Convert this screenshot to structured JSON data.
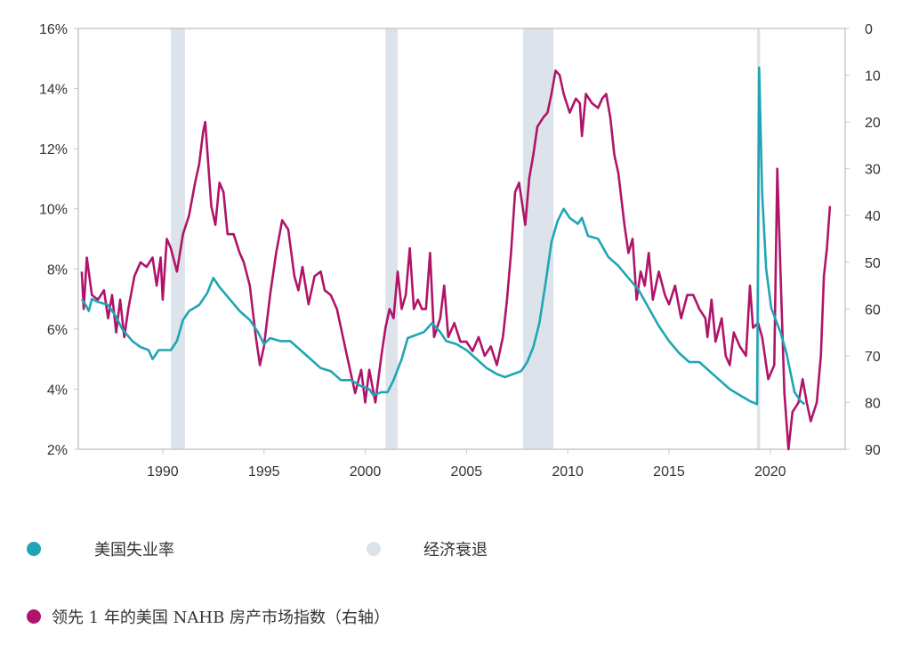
{
  "chart_data": {
    "type": "line",
    "title": "",
    "xlabel": "",
    "ylabel": "",
    "xlim": [
      1985.83,
      2023.7
    ],
    "x_ticks": [
      "1990",
      "1995",
      "2000",
      "2005",
      "2010",
      "2015",
      "2020"
    ],
    "left_axis": {
      "ylim": [
        2,
        16
      ],
      "ticks": [
        "2%",
        "4%",
        "6%",
        "8%",
        "10%",
        "12%",
        "14%",
        "16%"
      ]
    },
    "right_axis": {
      "ylim": [
        0,
        90
      ],
      "inverted": true,
      "ticks": [
        "0",
        "10",
        "20",
        "30",
        "40",
        "50",
        "60",
        "70",
        "80",
        "90"
      ]
    },
    "grid": false,
    "recessions": [
      [
        1990.4,
        1991.1
      ],
      [
        2001.0,
        2001.6
      ],
      [
        2007.8,
        2009.3
      ],
      [
        2019.35,
        2019.5
      ]
    ],
    "series": [
      {
        "name": "美国失业率",
        "axis": "left",
        "color": "#1fa5b5",
        "points": [
          [
            1986.0,
            7.0
          ],
          [
            1986.2,
            6.8
          ],
          [
            1986.35,
            6.6
          ],
          [
            1986.5,
            7.0
          ],
          [
            1986.8,
            6.9
          ],
          [
            1987.3,
            6.8
          ],
          [
            1987.7,
            6.4
          ],
          [
            1988.0,
            6.0
          ],
          [
            1988.5,
            5.6
          ],
          [
            1988.9,
            5.4
          ],
          [
            1989.3,
            5.3
          ],
          [
            1989.5,
            5.0
          ],
          [
            1989.8,
            5.3
          ],
          [
            1990.0,
            5.3
          ],
          [
            1990.4,
            5.3
          ],
          [
            1990.7,
            5.6
          ],
          [
            1991.0,
            6.3
          ],
          [
            1991.3,
            6.6
          ],
          [
            1991.8,
            6.8
          ],
          [
            1992.2,
            7.2
          ],
          [
            1992.5,
            7.7
          ],
          [
            1992.8,
            7.4
          ],
          [
            1993.3,
            7.0
          ],
          [
            1993.8,
            6.6
          ],
          [
            1994.3,
            6.3
          ],
          [
            1994.7,
            5.9
          ],
          [
            1995.0,
            5.5
          ],
          [
            1995.3,
            5.7
          ],
          [
            1995.8,
            5.6
          ],
          [
            1996.3,
            5.6
          ],
          [
            1996.8,
            5.3
          ],
          [
            1997.3,
            5.0
          ],
          [
            1997.8,
            4.7
          ],
          [
            1998.3,
            4.6
          ],
          [
            1998.8,
            4.3
          ],
          [
            1999.3,
            4.3
          ],
          [
            1999.8,
            4.1
          ],
          [
            2000.2,
            4.0
          ],
          [
            2000.4,
            3.8
          ],
          [
            2000.8,
            3.9
          ],
          [
            2001.1,
            3.9
          ],
          [
            2001.4,
            4.3
          ],
          [
            2001.8,
            5.0
          ],
          [
            2002.1,
            5.7
          ],
          [
            2002.5,
            5.8
          ],
          [
            2002.9,
            5.9
          ],
          [
            2003.3,
            6.2
          ],
          [
            2003.7,
            5.9
          ],
          [
            2004.0,
            5.6
          ],
          [
            2004.5,
            5.5
          ],
          [
            2005.0,
            5.3
          ],
          [
            2005.5,
            5.0
          ],
          [
            2006.0,
            4.7
          ],
          [
            2006.5,
            4.5
          ],
          [
            2006.9,
            4.4
          ],
          [
            2007.3,
            4.5
          ],
          [
            2007.7,
            4.6
          ],
          [
            2008.0,
            4.9
          ],
          [
            2008.3,
            5.4
          ],
          [
            2008.6,
            6.2
          ],
          [
            2008.9,
            7.5
          ],
          [
            2009.2,
            8.9
          ],
          [
            2009.5,
            9.6
          ],
          [
            2009.8,
            10.0
          ],
          [
            2010.1,
            9.7
          ],
          [
            2010.5,
            9.5
          ],
          [
            2010.7,
            9.7
          ],
          [
            2011.0,
            9.1
          ],
          [
            2011.5,
            9.0
          ],
          [
            2012.0,
            8.4
          ],
          [
            2012.5,
            8.1
          ],
          [
            2013.0,
            7.7
          ],
          [
            2013.5,
            7.3
          ],
          [
            2014.0,
            6.7
          ],
          [
            2014.5,
            6.1
          ],
          [
            2015.0,
            5.6
          ],
          [
            2015.5,
            5.2
          ],
          [
            2016.0,
            4.9
          ],
          [
            2016.5,
            4.9
          ],
          [
            2017.0,
            4.6
          ],
          [
            2017.5,
            4.3
          ],
          [
            2018.0,
            4.0
          ],
          [
            2018.5,
            3.8
          ],
          [
            2019.0,
            3.6
          ],
          [
            2019.35,
            3.5
          ],
          [
            2019.45,
            14.7
          ],
          [
            2019.6,
            10.5
          ],
          [
            2019.8,
            8.0
          ],
          [
            2020.05,
            6.7
          ],
          [
            2020.5,
            5.9
          ],
          [
            2020.8,
            5.2
          ],
          [
            2021.2,
            3.9
          ],
          [
            2021.5,
            3.6
          ],
          [
            2021.7,
            3.5
          ]
        ]
      },
      {
        "name": "领先 1 年的美国 NAHB 房产市场指数（右轴）",
        "axis": "right",
        "color": "#b0146a",
        "points": [
          [
            1986.0,
            52
          ],
          [
            1986.1,
            60
          ],
          [
            1986.25,
            49
          ],
          [
            1986.5,
            57
          ],
          [
            1986.8,
            58
          ],
          [
            1987.1,
            56
          ],
          [
            1987.3,
            62
          ],
          [
            1987.5,
            57
          ],
          [
            1987.7,
            65
          ],
          [
            1987.9,
            58
          ],
          [
            1988.1,
            66
          ],
          [
            1988.3,
            60
          ],
          [
            1988.6,
            53
          ],
          [
            1988.9,
            50
          ],
          [
            1989.2,
            51
          ],
          [
            1989.5,
            49
          ],
          [
            1989.7,
            55
          ],
          [
            1989.9,
            49
          ],
          [
            1990.0,
            58
          ],
          [
            1990.2,
            45
          ],
          [
            1990.4,
            47
          ],
          [
            1990.7,
            52
          ],
          [
            1991.0,
            44
          ],
          [
            1991.3,
            40
          ],
          [
            1991.6,
            33
          ],
          [
            1991.8,
            29
          ],
          [
            1992.0,
            22
          ],
          [
            1992.1,
            20
          ],
          [
            1992.4,
            38
          ],
          [
            1992.6,
            42
          ],
          [
            1992.8,
            33
          ],
          [
            1993.0,
            35
          ],
          [
            1993.2,
            44
          ],
          [
            1993.5,
            44
          ],
          [
            1993.8,
            48
          ],
          [
            1994.0,
            50
          ],
          [
            1994.3,
            55
          ],
          [
            1994.6,
            66
          ],
          [
            1994.8,
            72
          ],
          [
            1995.0,
            68
          ],
          [
            1995.3,
            57
          ],
          [
            1995.6,
            48
          ],
          [
            1995.9,
            41
          ],
          [
            1996.2,
            43
          ],
          [
            1996.5,
            53
          ],
          [
            1996.7,
            56
          ],
          [
            1996.9,
            51
          ],
          [
            1997.2,
            59
          ],
          [
            1997.5,
            53
          ],
          [
            1997.8,
            52
          ],
          [
            1998.0,
            56
          ],
          [
            1998.3,
            57
          ],
          [
            1998.6,
            60
          ],
          [
            1998.9,
            66
          ],
          [
            1999.2,
            72
          ],
          [
            1999.5,
            78
          ],
          [
            1999.8,
            73
          ],
          [
            2000.0,
            80
          ],
          [
            2000.2,
            73
          ],
          [
            2000.5,
            80
          ],
          [
            2000.8,
            70
          ],
          [
            2001.0,
            64
          ],
          [
            2001.2,
            60
          ],
          [
            2001.4,
            62
          ],
          [
            2001.6,
            52
          ],
          [
            2001.8,
            60
          ],
          [
            2002.0,
            57
          ],
          [
            2002.2,
            47
          ],
          [
            2002.4,
            60
          ],
          [
            2002.6,
            58
          ],
          [
            2002.8,
            60
          ],
          [
            2003.0,
            60
          ],
          [
            2003.2,
            48
          ],
          [
            2003.4,
            66
          ],
          [
            2003.7,
            62
          ],
          [
            2003.9,
            55
          ],
          [
            2004.1,
            66
          ],
          [
            2004.4,
            63
          ],
          [
            2004.7,
            67
          ],
          [
            2005.0,
            67
          ],
          [
            2005.3,
            69
          ],
          [
            2005.6,
            66
          ],
          [
            2005.9,
            70
          ],
          [
            2006.2,
            68
          ],
          [
            2006.5,
            72
          ],
          [
            2006.8,
            66
          ],
          [
            2007.0,
            58
          ],
          [
            2007.2,
            48
          ],
          [
            2007.4,
            35
          ],
          [
            2007.6,
            33
          ],
          [
            2007.9,
            42
          ],
          [
            2008.1,
            32
          ],
          [
            2008.3,
            27
          ],
          [
            2008.5,
            21
          ],
          [
            2008.8,
            19
          ],
          [
            2009.0,
            18
          ],
          [
            2009.2,
            14
          ],
          [
            2009.4,
            9
          ],
          [
            2009.6,
            10
          ],
          [
            2009.8,
            14
          ],
          [
            2010.1,
            18
          ],
          [
            2010.4,
            15
          ],
          [
            2010.6,
            16
          ],
          [
            2010.7,
            23
          ],
          [
            2010.9,
            14
          ],
          [
            2011.2,
            16
          ],
          [
            2011.5,
            17
          ],
          [
            2011.7,
            15
          ],
          [
            2011.9,
            14
          ],
          [
            2012.1,
            19
          ],
          [
            2012.3,
            27
          ],
          [
            2012.5,
            31
          ],
          [
            2012.8,
            42
          ],
          [
            2013.0,
            48
          ],
          [
            2013.2,
            45
          ],
          [
            2013.4,
            58
          ],
          [
            2013.6,
            52
          ],
          [
            2013.8,
            55
          ],
          [
            2014.0,
            48
          ],
          [
            2014.2,
            58
          ],
          [
            2014.5,
            52
          ],
          [
            2014.8,
            57
          ],
          [
            2015.0,
            59
          ],
          [
            2015.3,
            55
          ],
          [
            2015.6,
            62
          ],
          [
            2015.9,
            57
          ],
          [
            2016.2,
            57
          ],
          [
            2016.5,
            60
          ],
          [
            2016.8,
            62
          ],
          [
            2016.9,
            66
          ],
          [
            2017.1,
            58
          ],
          [
            2017.3,
            67
          ],
          [
            2017.6,
            62
          ],
          [
            2017.8,
            70
          ],
          [
            2018.0,
            72
          ],
          [
            2018.2,
            65
          ],
          [
            2018.5,
            68
          ],
          [
            2018.8,
            70
          ],
          [
            2019.0,
            55
          ],
          [
            2019.15,
            64
          ],
          [
            2019.4,
            63
          ],
          [
            2019.6,
            66
          ],
          [
            2019.9,
            75
          ],
          [
            2020.2,
            72
          ],
          [
            2020.35,
            30
          ],
          [
            2020.55,
            58
          ],
          [
            2020.7,
            78
          ],
          [
            2020.9,
            90
          ],
          [
            2021.1,
            82
          ],
          [
            2021.4,
            80
          ],
          [
            2021.6,
            75
          ],
          [
            2021.8,
            80
          ],
          [
            2022.0,
            84
          ],
          [
            2022.3,
            80
          ],
          [
            2022.5,
            70
          ],
          [
            2022.65,
            53
          ],
          [
            2022.8,
            47
          ],
          [
            2022.95,
            38
          ]
        ]
      }
    ]
  },
  "legend": {
    "unemployment": "美国失业率",
    "recession": "经济衰退",
    "nahb": "领先 1 年的美国 NAHB 房产市场指数（右轴）"
  },
  "colors": {
    "unemployment": "#1fa5b5",
    "recession": "#dde3ea",
    "nahb": "#b0146a",
    "axis": "#c8c8c8"
  }
}
